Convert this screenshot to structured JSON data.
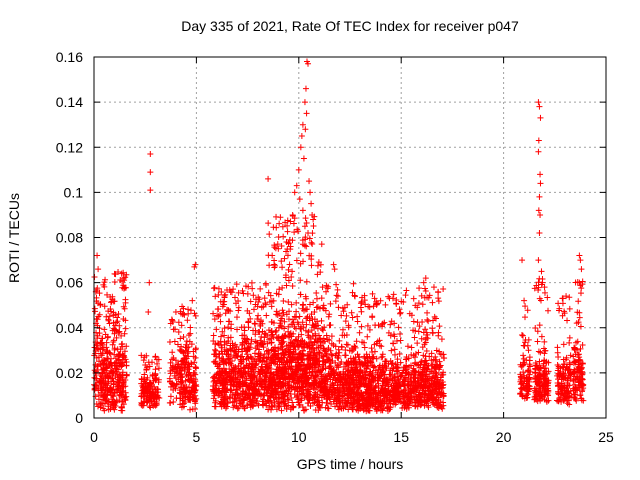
{
  "chart_data": {
    "type": "scatter",
    "title": "Day 335 of 2021, Rate Of TEC Index for receiver p047",
    "xlabel": "GPS time / hours",
    "ylabel": "ROTI / TECUs",
    "xlim": [
      0,
      25
    ],
    "ylim": [
      0,
      0.16
    ],
    "xticks": [
      0,
      5,
      10,
      15,
      20,
      25
    ],
    "xtick_labels": [
      "0",
      "5",
      "10",
      "15",
      "20",
      "25"
    ],
    "yticks": [
      0,
      0.02,
      0.04,
      0.06,
      0.08,
      0.1,
      0.12,
      0.14,
      0.16
    ],
    "ytick_labels": [
      "0",
      "0.02",
      "0.04",
      "0.06",
      "0.08",
      "0.1",
      "0.12",
      "0.14",
      "0.16"
    ],
    "grid": true,
    "marker": "+",
    "color": "#ff0000",
    "series": [
      {
        "name": "ROTI",
        "clusters": [
          {
            "x_range": [
              0.0,
              1.6
            ],
            "y_range": [
              0.003,
              0.045
            ],
            "y_peak": 0.065,
            "count": 420
          },
          {
            "x_range": [
              2.3,
              3.2
            ],
            "y_range": [
              0.004,
              0.022
            ],
            "y_peak": 0.028,
            "count": 150
          },
          {
            "x_range": [
              3.7,
              4.2
            ],
            "y_range": [
              0.006,
              0.035
            ],
            "y_peak": 0.048,
            "count": 60
          },
          {
            "x_range": [
              4.2,
              5.0
            ],
            "y_range": [
              0.003,
              0.035
            ],
            "y_peak": 0.05,
            "count": 180
          },
          {
            "x_range": [
              5.8,
              8.5
            ],
            "y_range": [
              0.004,
              0.04
            ],
            "y_peak": 0.06,
            "count": 700
          },
          {
            "x_range": [
              8.5,
              11.2
            ],
            "y_range": [
              0.003,
              0.05
            ],
            "y_peak": 0.09,
            "count": 900
          },
          {
            "x_range": [
              11.2,
              12.8
            ],
            "y_range": [
              0.003,
              0.035
            ],
            "y_peak": 0.06,
            "count": 400
          },
          {
            "x_range": [
              12.8,
              14.5
            ],
            "y_range": [
              0.002,
              0.03
            ],
            "y_peak": 0.055,
            "count": 450
          },
          {
            "x_range": [
              14.5,
              17.1
            ],
            "y_range": [
              0.004,
              0.03
            ],
            "y_peak": 0.058,
            "count": 600
          },
          {
            "x_range": [
              20.8,
              21.3
            ],
            "y_range": [
              0.008,
              0.03
            ],
            "y_peak": 0.05,
            "count": 90
          },
          {
            "x_range": [
              21.5,
              22.2
            ],
            "y_range": [
              0.007,
              0.03
            ],
            "y_peak": 0.062,
            "count": 160
          },
          {
            "x_range": [
              22.6,
              23.3
            ],
            "y_range": [
              0.006,
              0.03
            ],
            "y_peak": 0.054,
            "count": 130
          },
          {
            "x_range": [
              23.4,
              23.9
            ],
            "y_range": [
              0.007,
              0.035
            ],
            "y_peak": 0.062,
            "count": 120
          }
        ],
        "points": [
          [
            2.75,
            0.117
          ],
          [
            2.75,
            0.109
          ],
          [
            2.75,
            0.101
          ],
          [
            2.7,
            0.06
          ],
          [
            2.65,
            0.047
          ],
          [
            0.15,
            0.072
          ],
          [
            0.2,
            0.066
          ],
          [
            1.35,
            0.064
          ],
          [
            1.45,
            0.062
          ],
          [
            4.95,
            0.068
          ],
          [
            4.9,
            0.067
          ],
          [
            4.8,
            0.052
          ],
          [
            4.0,
            0.047
          ],
          [
            8.5,
            0.106
          ],
          [
            8.7,
            0.072
          ],
          [
            9.0,
            0.075
          ],
          [
            9.1,
            0.089
          ],
          [
            9.4,
            0.078
          ],
          [
            9.6,
            0.076
          ],
          [
            9.7,
            0.09
          ],
          [
            9.8,
            0.1
          ],
          [
            9.9,
            0.103
          ],
          [
            10.0,
            0.11
          ],
          [
            10.05,
            0.097
          ],
          [
            10.1,
            0.12
          ],
          [
            10.15,
            0.125
          ],
          [
            10.2,
            0.13
          ],
          [
            10.25,
            0.115
          ],
          [
            10.3,
            0.14
          ],
          [
            10.35,
            0.146
          ],
          [
            10.4,
            0.158
          ],
          [
            10.45,
            0.157
          ],
          [
            10.38,
            0.135
          ],
          [
            10.32,
            0.128
          ],
          [
            10.5,
            0.105
          ],
          [
            10.55,
            0.1
          ],
          [
            10.6,
            0.095
          ],
          [
            10.65,
            0.09
          ],
          [
            10.7,
            0.088
          ],
          [
            10.2,
            0.092
          ],
          [
            10.3,
            0.085
          ],
          [
            10.45,
            0.082
          ],
          [
            11.7,
            0.068
          ],
          [
            11.75,
            0.066
          ],
          [
            13.6,
            0.055
          ],
          [
            13.7,
            0.053
          ],
          [
            16.1,
            0.06
          ],
          [
            16.2,
            0.062
          ],
          [
            16.6,
            0.058
          ],
          [
            20.9,
            0.07
          ],
          [
            21.0,
            0.052
          ],
          [
            21.7,
            0.14
          ],
          [
            21.75,
            0.138
          ],
          [
            21.8,
            0.133
          ],
          [
            21.72,
            0.123
          ],
          [
            21.7,
            0.118
          ],
          [
            21.78,
            0.108
          ],
          [
            21.8,
            0.104
          ],
          [
            21.75,
            0.098
          ],
          [
            21.72,
            0.092
          ],
          [
            21.78,
            0.09
          ],
          [
            21.75,
            0.082
          ],
          [
            21.7,
            0.07
          ],
          [
            21.85,
            0.065
          ],
          [
            21.9,
            0.06
          ],
          [
            22.0,
            0.058
          ],
          [
            23.05,
            0.054
          ],
          [
            22.9,
            0.053
          ],
          [
            23.7,
            0.072
          ],
          [
            23.75,
            0.07
          ],
          [
            23.8,
            0.066
          ],
          [
            23.7,
            0.06
          ]
        ]
      }
    ]
  }
}
